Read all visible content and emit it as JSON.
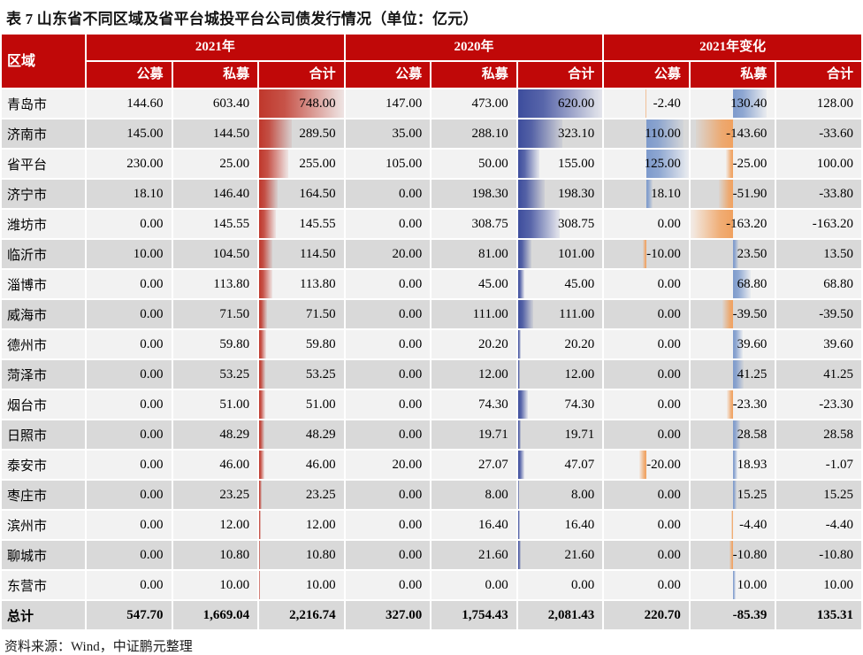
{
  "title": "表 7  山东省不同区域及省平台城投平台公司债发行情况（单位：亿元）",
  "source_note": "资料来源：Wind，中证鹏元整理",
  "colors": {
    "header_bg": "#c00808",
    "row_light": "#f2f2f2",
    "row_dark": "#d9d9d9",
    "bar_2021_total": "#bf372b",
    "bar_2020_total": "#3d4d9d",
    "bar_change_positive": "#7d9acc",
    "bar_change_negative": "#f0a15f",
    "title_text": "#141414",
    "header_text": "#ffffff"
  },
  "table": {
    "region_header": "区域",
    "col_groups": [
      {
        "label": "2021年",
        "sub": [
          "公募",
          "私募",
          "合计"
        ]
      },
      {
        "label": "2020年",
        "sub": [
          "公募",
          "私募",
          "合计"
        ]
      },
      {
        "label": "2021年变化",
        "sub": [
          "公募",
          "私募",
          "合计"
        ]
      }
    ],
    "bar_columns": {
      "left_anchored": [
        2,
        5
      ],
      "midpoint_anchored": [
        6,
        7
      ]
    },
    "rows": [
      {
        "region": "青岛市",
        "values": [
          144.6,
          603.4,
          748.0,
          147.0,
          473.0,
          620.0,
          -2.4,
          130.4,
          128.0
        ]
      },
      {
        "region": "济南市",
        "values": [
          145.0,
          144.5,
          289.5,
          35.0,
          288.1,
          323.1,
          110.0,
          -143.6,
          -33.6
        ]
      },
      {
        "region": "省平台",
        "values": [
          230.0,
          25.0,
          255.0,
          105.0,
          50.0,
          155.0,
          125.0,
          -25.0,
          100.0
        ]
      },
      {
        "region": "济宁市",
        "values": [
          18.1,
          146.4,
          164.5,
          0.0,
          198.3,
          198.3,
          18.1,
          -51.9,
          -33.8
        ]
      },
      {
        "region": "潍坊市",
        "values": [
          0.0,
          145.55,
          145.55,
          0.0,
          308.75,
          308.75,
          0.0,
          -163.2,
          -163.2
        ]
      },
      {
        "region": "临沂市",
        "values": [
          10.0,
          104.5,
          114.5,
          20.0,
          81.0,
          101.0,
          -10.0,
          23.5,
          13.5
        ]
      },
      {
        "region": "淄博市",
        "values": [
          0.0,
          113.8,
          113.8,
          0.0,
          45.0,
          45.0,
          0.0,
          68.8,
          68.8
        ]
      },
      {
        "region": "威海市",
        "values": [
          0.0,
          71.5,
          71.5,
          0.0,
          111.0,
          111.0,
          0.0,
          -39.5,
          -39.5
        ]
      },
      {
        "region": "德州市",
        "values": [
          0.0,
          59.8,
          59.8,
          0.0,
          20.2,
          20.2,
          0.0,
          39.6,
          39.6
        ]
      },
      {
        "region": "菏泽市",
        "values": [
          0.0,
          53.25,
          53.25,
          0.0,
          12.0,
          12.0,
          0.0,
          41.25,
          41.25
        ]
      },
      {
        "region": "烟台市",
        "values": [
          0.0,
          51.0,
          51.0,
          0.0,
          74.3,
          74.3,
          0.0,
          -23.3,
          -23.3
        ]
      },
      {
        "region": "日照市",
        "values": [
          0.0,
          48.29,
          48.29,
          0.0,
          19.71,
          19.71,
          0.0,
          28.58,
          28.58
        ]
      },
      {
        "region": "泰安市",
        "values": [
          0.0,
          46.0,
          46.0,
          20.0,
          27.07,
          47.07,
          -20.0,
          18.93,
          -1.07
        ]
      },
      {
        "region": "枣庄市",
        "values": [
          0.0,
          23.25,
          23.25,
          0.0,
          8.0,
          8.0,
          0.0,
          15.25,
          15.25
        ]
      },
      {
        "region": "滨州市",
        "values": [
          0.0,
          12.0,
          12.0,
          0.0,
          16.4,
          16.4,
          0.0,
          -4.4,
          -4.4
        ]
      },
      {
        "region": "聊城市",
        "values": [
          0.0,
          10.8,
          10.8,
          0.0,
          21.6,
          21.6,
          0.0,
          -10.8,
          -10.8
        ]
      },
      {
        "region": "东营市",
        "values": [
          0.0,
          10.0,
          10.0,
          0.0,
          0.0,
          0.0,
          0.0,
          10.0,
          10.0
        ]
      }
    ],
    "total_row": {
      "region": "总计",
      "values": [
        547.7,
        1669.04,
        2216.74,
        327.0,
        1754.43,
        2081.43,
        220.7,
        -85.39,
        135.31
      ]
    }
  }
}
